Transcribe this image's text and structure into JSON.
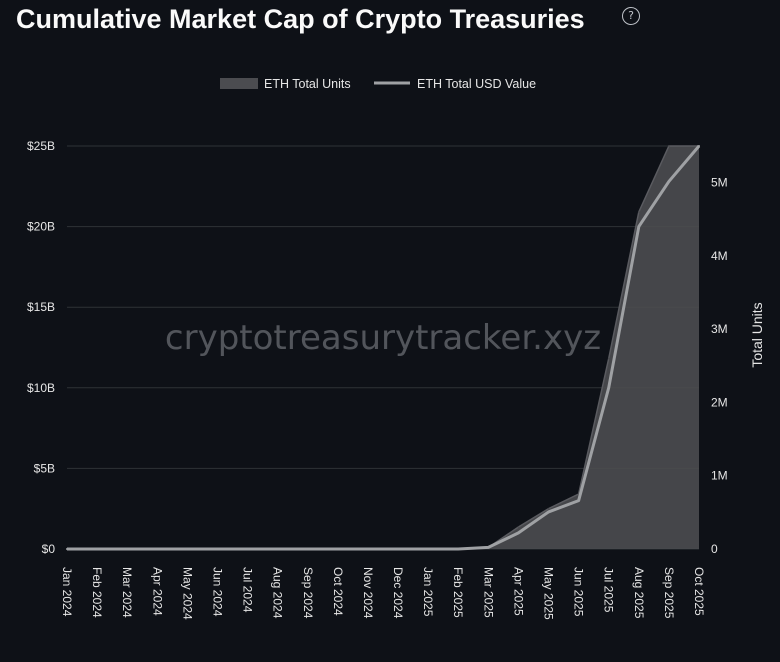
{
  "header": {
    "title": "Cumulative Market Cap of Crypto Treasuries",
    "help_icon": "?"
  },
  "watermark": "cryptotreasurytracker.xyz",
  "chart_data": {
    "type": "area",
    "title": "Cumulative Market Cap of Crypto Treasuries",
    "categories": [
      "Jan 2024",
      "Feb 2024",
      "Mar 2024",
      "Apr 2024",
      "May 2024",
      "Jun 2024",
      "Jul 2024",
      "Aug 2024",
      "Sep 2024",
      "Oct 2024",
      "Nov 2024",
      "Dec 2024",
      "Jan 2025",
      "Feb 2025",
      "Mar 2025",
      "Apr 2025",
      "May 2025",
      "Jun 2025",
      "Jul 2025",
      "Aug 2025",
      "Sep 2025",
      "Oct 2025"
    ],
    "series": [
      {
        "name": "ETH Total Units",
        "kind": "area",
        "axis": "right",
        "color": "#4b4c50",
        "values": [
          0,
          0,
          0,
          0,
          0,
          0,
          0,
          0,
          0,
          0,
          0,
          0,
          0,
          0,
          20000,
          300000,
          550000,
          750000,
          2600000,
          4600000,
          5500000,
          5500000
        ]
      },
      {
        "name": "ETH Total USD Value",
        "kind": "line",
        "axis": "left",
        "color": "#9fa1a4",
        "values": [
          0,
          0,
          0,
          0,
          0,
          0,
          0,
          0,
          0,
          0,
          0,
          0,
          0,
          0,
          0.1,
          1.0,
          2.3,
          3.0,
          10.0,
          20.0,
          22.8,
          25.0
        ]
      }
    ],
    "y_left": {
      "label": "",
      "unit": "$B",
      "ylim": [
        0,
        25
      ],
      "ticks": [
        0,
        5,
        10,
        15,
        20,
        25
      ],
      "tick_labels": [
        "$0",
        "$5B",
        "$10B",
        "$15B",
        "$20B",
        "$25B"
      ]
    },
    "y_right": {
      "label": "Total Units",
      "ylim": [
        0,
        5500000
      ],
      "ticks": [
        0,
        1000000,
        2000000,
        3000000,
        4000000,
        5000000
      ],
      "tick_labels": [
        "0",
        "1M",
        "2M",
        "3M",
        "4M",
        "5M"
      ]
    },
    "legend_position": "top-center",
    "grid": true
  },
  "colors": {
    "background": "#0e1117",
    "grid": "#2f3237",
    "text": "#e6e6e6"
  }
}
